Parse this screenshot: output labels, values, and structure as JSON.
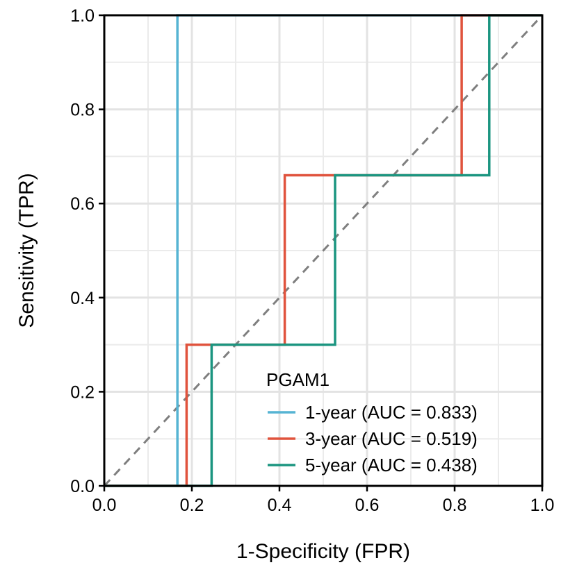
{
  "chart_data": {
    "type": "line",
    "xlabel": "1-Specificity (FPR)",
    "ylabel": "Sensitivity (TPR)",
    "xlim": [
      0,
      1
    ],
    "ylim": [
      0,
      1
    ],
    "x_ticks": [
      0.0,
      0.2,
      0.4,
      0.6,
      0.8,
      1.0
    ],
    "y_ticks": [
      0.0,
      0.2,
      0.4,
      0.6,
      0.8,
      1.0
    ],
    "x_tick_labels": [
      "0.0",
      "0.2",
      "0.4",
      "0.6",
      "0.8",
      "1.0"
    ],
    "y_tick_labels": [
      "0.0",
      "0.2",
      "0.4",
      "0.6",
      "0.8",
      "1.0"
    ],
    "grid": true,
    "diagonal_reference": true,
    "legend": {
      "title": "PGAM1",
      "placement": "bottom-right"
    },
    "series": [
      {
        "name": "1-year (AUC = 0.833)",
        "color": "#56B4D3",
        "x": [
          0,
          0.167,
          0.167,
          1.0
        ],
        "y": [
          0,
          0,
          1.0,
          1.0
        ]
      },
      {
        "name": "3-year (AUC = 0.519)",
        "color": "#E0533D",
        "x": [
          0,
          0.188,
          0.188,
          0.412,
          0.412,
          0.816,
          0.816,
          1.0
        ],
        "y": [
          0,
          0,
          0.3,
          0.3,
          0.66,
          0.66,
          1.0,
          1.0
        ]
      },
      {
        "name": "5-year (AUC = 0.438)",
        "color": "#1B9580",
        "x": [
          0,
          0.245,
          0.245,
          0.527,
          0.527,
          0.879,
          0.879,
          1.0
        ],
        "y": [
          0,
          0,
          0.3,
          0.3,
          0.66,
          0.66,
          1.0,
          1.0
        ]
      }
    ]
  }
}
